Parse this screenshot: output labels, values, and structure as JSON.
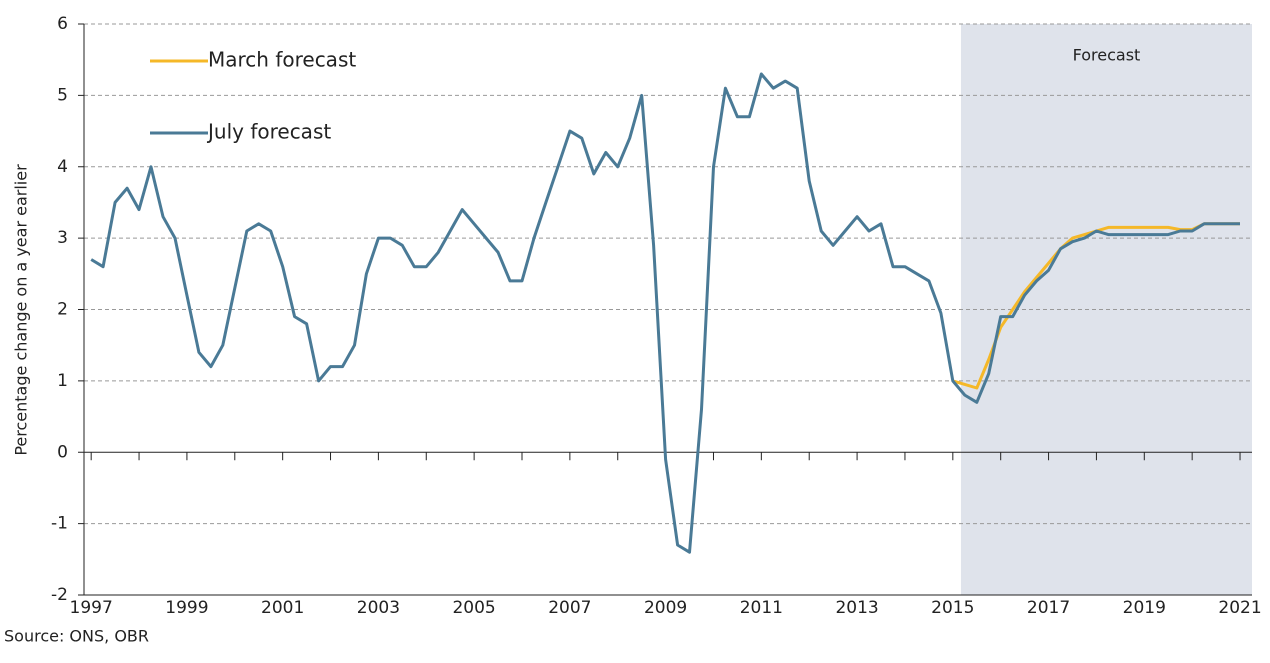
{
  "chart_data": {
    "type": "line",
    "y_label": "Percentage change on a year earlier",
    "source": "Source: ONS, OBR",
    "forecast_label": "Forecast",
    "forecast_span": [
      2015.17,
      2021.25
    ],
    "forecast_color": "#dfe3eb",
    "legend": "upper left",
    "x": [
      1997,
      1997.25,
      1997.5,
      1997.75,
      1998,
      1998.25,
      1998.5,
      1998.75,
      1999,
      1999.25,
      1999.5,
      1999.75,
      2000,
      2000.25,
      2000.5,
      2000.75,
      2001,
      2001.25,
      2001.5,
      2001.75,
      2002,
      2002.25,
      2002.5,
      2002.75,
      2003,
      2003.25,
      2003.5,
      2003.75,
      2004,
      2004.25,
      2004.5,
      2004.75,
      2005,
      2005.25,
      2005.5,
      2005.75,
      2006,
      2006.25,
      2006.5,
      2006.75,
      2007,
      2007.25,
      2007.5,
      2007.75,
      2008,
      2008.25,
      2008.5,
      2008.75,
      2009,
      2009.25,
      2009.5,
      2009.75,
      2010,
      2010.25,
      2010.5,
      2010.75,
      2011,
      2011.25,
      2011.5,
      2011.75,
      2012,
      2012.25,
      2012.5,
      2012.75,
      2013,
      2013.25,
      2013.5,
      2013.75,
      2014,
      2014.25,
      2014.5,
      2014.75,
      2015,
      2015.25,
      2015.5,
      2015.75,
      2016,
      2016.25,
      2016.5,
      2016.75,
      2017,
      2017.25,
      2017.5,
      2017.75,
      2018,
      2018.25,
      2018.5,
      2018.75,
      2019,
      2019.25,
      2019.5,
      2019.75,
      2020,
      2020.25,
      2020.5,
      2020.75,
      2021
    ],
    "series": [
      {
        "name": "March forecast",
        "color": "#f5b828",
        "values": [
          null,
          null,
          null,
          null,
          null,
          null,
          null,
          null,
          null,
          null,
          null,
          null,
          null,
          null,
          null,
          null,
          null,
          null,
          null,
          null,
          null,
          null,
          null,
          null,
          null,
          null,
          null,
          null,
          null,
          null,
          null,
          null,
          null,
          null,
          null,
          null,
          null,
          null,
          null,
          null,
          null,
          null,
          null,
          null,
          null,
          null,
          null,
          null,
          null,
          null,
          null,
          null,
          null,
          null,
          null,
          null,
          null,
          null,
          null,
          null,
          null,
          null,
          null,
          null,
          null,
          null,
          null,
          null,
          null,
          null,
          null,
          null,
          1.0,
          0.95,
          0.9,
          1.3,
          1.75,
          2.0,
          2.25,
          2.45,
          2.65,
          2.85,
          3.0,
          3.05,
          3.1,
          3.15,
          3.15,
          3.15,
          3.15,
          3.15,
          3.15,
          3.12,
          3.12,
          3.2,
          3.2,
          3.2,
          3.2
        ]
      },
      {
        "name": "July forecast",
        "color": "#4a7a96",
        "values": [
          2.7,
          2.6,
          3.5,
          3.7,
          3.4,
          4.0,
          3.3,
          3.0,
          2.2,
          1.4,
          1.2,
          1.5,
          2.3,
          3.1,
          3.2,
          3.1,
          2.6,
          1.9,
          1.8,
          1.0,
          1.2,
          1.2,
          1.5,
          2.5,
          3.0,
          3.0,
          2.9,
          2.6,
          2.6,
          2.8,
          3.1,
          3.4,
          3.2,
          3.0,
          2.8,
          2.4,
          2.4,
          3.0,
          3.5,
          4.0,
          4.5,
          4.4,
          3.9,
          4.2,
          4.0,
          4.4,
          5.0,
          2.9,
          -0.1,
          -1.3,
          -1.4,
          0.6,
          4.0,
          5.1,
          4.7,
          4.7,
          5.3,
          5.1,
          5.2,
          5.1,
          3.8,
          3.1,
          2.9,
          3.1,
          3.3,
          3.1,
          3.2,
          2.6,
          2.6,
          2.5,
          2.4,
          1.95,
          1.0,
          0.8,
          0.7,
          1.1,
          1.9,
          1.9,
          2.2,
          2.4,
          2.55,
          2.85,
          2.95,
          3.0,
          3.1,
          3.05,
          3.05,
          3.05,
          3.05,
          3.05,
          3.05,
          3.1,
          3.1,
          3.2,
          3.2,
          3.2,
          3.2
        ]
      }
    ],
    "xlim": [
      1996.85,
      2021.25
    ],
    "xticks": [
      1997,
      1999,
      2001,
      2003,
      2005,
      2007,
      2009,
      2011,
      2013,
      2015,
      2017,
      2019,
      2021
    ],
    "xminorticks": [
      1998,
      2000,
      2002,
      2004,
      2006,
      2008,
      2010,
      2012,
      2014,
      2016,
      2018,
      2020
    ],
    "ylim": [
      -2,
      6
    ],
    "yticks": [
      -2,
      -1,
      0,
      1,
      2,
      3,
      4,
      5,
      6
    ],
    "grid": true
  }
}
